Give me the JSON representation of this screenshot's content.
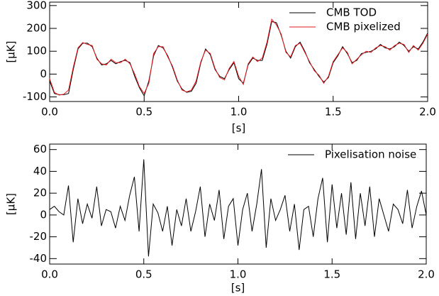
{
  "chart_data": [
    {
      "type": "line",
      "xlabel": "[s]",
      "ylabel": "[μK]",
      "x": [
        0,
        0.025,
        0.05,
        0.075,
        0.1,
        0.125,
        0.15,
        0.175,
        0.2,
        0.225,
        0.25,
        0.275,
        0.3,
        0.325,
        0.35,
        0.375,
        0.4,
        0.425,
        0.45,
        0.475,
        0.5,
        0.525,
        0.55,
        0.575,
        0.6,
        0.625,
        0.65,
        0.675,
        0.7,
        0.725,
        0.75,
        0.775,
        0.8,
        0.825,
        0.85,
        0.875,
        0.9,
        0.925,
        0.95,
        0.975,
        1,
        1.025,
        1.05,
        1.075,
        1.1,
        1.125,
        1.15,
        1.175,
        1.2,
        1.225,
        1.25,
        1.275,
        1.3,
        1.325,
        1.35,
        1.375,
        1.4,
        1.425,
        1.45,
        1.475,
        1.5,
        1.525,
        1.55,
        1.575,
        1.6,
        1.625,
        1.65,
        1.675,
        1.7,
        1.725,
        1.75,
        1.775,
        1.8,
        1.825,
        1.85,
        1.875,
        1.9,
        1.925,
        1.95,
        1.975,
        2
      ],
      "series": [
        {
          "name": "CMB TOD",
          "color": "#000000",
          "values": [
            -30,
            -85,
            -90,
            -90,
            -85,
            20,
            110,
            135,
            135,
            120,
            70,
            40,
            45,
            60,
            45,
            55,
            60,
            50,
            -10,
            -60,
            -95,
            -30,
            80,
            125,
            115,
            80,
            30,
            -30,
            -65,
            -80,
            -75,
            -40,
            50,
            110,
            85,
            20,
            -10,
            -20,
            20,
            50,
            -20,
            -40,
            40,
            70,
            60,
            60,
            130,
            230,
            225,
            170,
            100,
            70,
            120,
            140,
            100,
            50,
            20,
            -10,
            -35,
            -15,
            50,
            80,
            120,
            90,
            50,
            60,
            90,
            95,
            100,
            110,
            130,
            115,
            110,
            120,
            140,
            125,
            100,
            120,
            110,
            140,
            180
          ]
        },
        {
          "name": "CMB pixelized",
          "color": "#e8191c",
          "values": [
            -20,
            -80,
            -92,
            -88,
            -70,
            30,
            115,
            138,
            130,
            125,
            65,
            45,
            40,
            65,
            50,
            50,
            65,
            45,
            0,
            -55,
            -85,
            -40,
            90,
            120,
            120,
            75,
            35,
            -25,
            -70,
            -78,
            -70,
            -30,
            55,
            105,
            90,
            25,
            -15,
            -25,
            25,
            55,
            -10,
            -45,
            45,
            75,
            55,
            70,
            140,
            240,
            215,
            175,
            95,
            75,
            125,
            135,
            95,
            55,
            15,
            -5,
            -40,
            -10,
            55,
            85,
            115,
            95,
            45,
            65,
            85,
            100,
            95,
            115,
            125,
            120,
            105,
            125,
            135,
            130,
            95,
            125,
            105,
            135,
            175
          ]
        }
      ],
      "xlim": [
        0,
        2
      ],
      "ylim": [
        -120,
        315
      ],
      "xticks": [
        {
          "value": 0,
          "label": "0.0"
        },
        {
          "value": 0.5,
          "label": "0.5"
        },
        {
          "value": 1,
          "label": "1.0"
        },
        {
          "value": 1.5,
          "label": "1.5"
        },
        {
          "value": 2,
          "label": "2.0"
        }
      ],
      "yticks": [
        -100,
        0,
        100,
        200,
        300
      ],
      "legend": "upper right"
    },
    {
      "type": "line",
      "xlabel": "[s]",
      "ylabel": "[μK]",
      "x": [
        0,
        0.025,
        0.05,
        0.075,
        0.1,
        0.125,
        0.15,
        0.175,
        0.2,
        0.225,
        0.25,
        0.275,
        0.3,
        0.325,
        0.35,
        0.375,
        0.4,
        0.425,
        0.45,
        0.475,
        0.5,
        0.525,
        0.55,
        0.575,
        0.6,
        0.625,
        0.65,
        0.675,
        0.7,
        0.725,
        0.75,
        0.775,
        0.8,
        0.825,
        0.85,
        0.875,
        0.9,
        0.925,
        0.95,
        0.975,
        1,
        1.025,
        1.05,
        1.075,
        1.1,
        1.125,
        1.15,
        1.175,
        1.2,
        1.225,
        1.25,
        1.275,
        1.3,
        1.325,
        1.35,
        1.375,
        1.4,
        1.425,
        1.45,
        1.475,
        1.5,
        1.525,
        1.55,
        1.575,
        1.6,
        1.625,
        1.65,
        1.675,
        1.7,
        1.725,
        1.75,
        1.775,
        1.8,
        1.825,
        1.85,
        1.875,
        1.9,
        1.925,
        1.95,
        1.975,
        2
      ],
      "series": [
        {
          "name": "Pixelisation noise",
          "color": "#000000",
          "values": [
            5,
            8,
            3,
            0,
            27,
            -25,
            15,
            -8,
            10,
            -3,
            26,
            -10,
            5,
            3,
            -12,
            8,
            -5,
            18,
            35,
            -15,
            51,
            -38,
            10,
            2,
            -15,
            8,
            -28,
            5,
            -10,
            15,
            -15,
            3,
            26,
            -20,
            10,
            -5,
            23,
            -22,
            8,
            15,
            -28,
            5,
            20,
            -15,
            10,
            42,
            -30,
            15,
            -5,
            5,
            18,
            -15,
            10,
            -32,
            5,
            8,
            -20,
            15,
            34,
            -25,
            28,
            -12,
            20,
            -18,
            30,
            -22,
            20,
            -10,
            26,
            -20,
            15,
            0,
            -15,
            10,
            5,
            -8,
            23,
            -12,
            8,
            22,
            0
          ]
        }
      ],
      "xlim": [
        0,
        2
      ],
      "ylim": [
        -45,
        65
      ],
      "xticks": [
        {
          "value": 0,
          "label": "0.0"
        },
        {
          "value": 0.5,
          "label": "0.5"
        },
        {
          "value": 1,
          "label": "1.0"
        },
        {
          "value": 1.5,
          "label": "1.5"
        },
        {
          "value": 2,
          "label": "2.0"
        }
      ],
      "yticks": [
        -40,
        -20,
        0,
        20,
        40,
        60
      ],
      "legend": "upper right"
    }
  ]
}
